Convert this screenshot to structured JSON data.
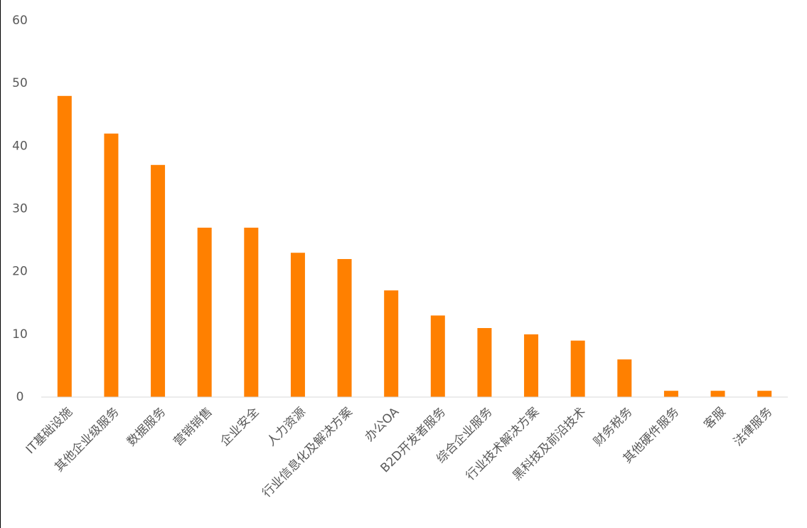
{
  "chart_data": {
    "type": "bar",
    "categories": [
      "IT基础设施",
      "其他企业级服务",
      "数据服务",
      "营销销售",
      "企业安全",
      "人力资源",
      "行业信息化及解决方案",
      "办公OA",
      "B2D开发者服务",
      "综合企业服务",
      "行业技术解决方案",
      "黑科技及前沿技术",
      "财务税务",
      "其他硬件服务",
      "客服",
      "法律服务"
    ],
    "values": [
      48,
      42,
      37,
      27,
      27,
      23,
      22,
      17,
      13,
      11,
      10,
      9,
      6,
      1,
      1,
      1
    ],
    "color": "#ff8000",
    "ylim": [
      0,
      60
    ],
    "yticks": [
      0,
      10,
      20,
      30,
      40,
      50,
      60
    ],
    "grid": false
  }
}
